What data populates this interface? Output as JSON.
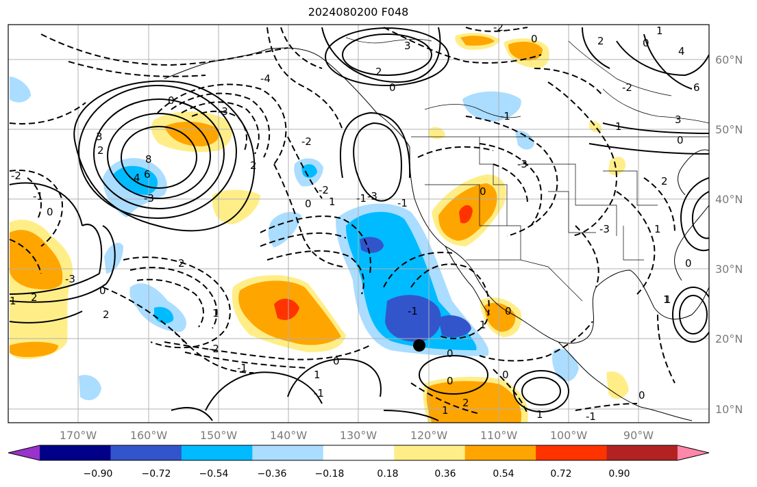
{
  "title": "2024080200 F048",
  "map": {
    "lat_labels": [
      "60°N",
      "50°N",
      "40°N",
      "30°N",
      "20°N",
      "10°N"
    ],
    "lon_labels": [
      "170°W",
      "160°W",
      "150°W",
      "140°W",
      "130°W",
      "120°W",
      "110°W",
      "100°W",
      "90°W"
    ],
    "contour_labels": [
      "2",
      "2",
      "0",
      "3",
      "0",
      "-2",
      "-4",
      "0",
      "-3",
      "3",
      "8",
      "6",
      "4",
      "-3",
      "2",
      "2",
      "-2",
      "-1",
      "0",
      "-2",
      "-2",
      "0",
      "1",
      "-3",
      "-1",
      "2",
      "0",
      "2",
      "1",
      "-3",
      "2",
      "1",
      "0",
      "1",
      "-1",
      "-2",
      "-1",
      "0",
      "1",
      "2",
      "1",
      "-1",
      "0",
      "0",
      "1",
      "-1",
      "-3",
      "-1",
      "0",
      "4",
      "6",
      "0",
      "1",
      "3",
      "1",
      "2",
      "0",
      "0",
      "-2",
      "-3",
      "1",
      "0",
      "1",
      "-1",
      "0",
      "1"
    ],
    "marker": "black-dot"
  },
  "colorbar": {
    "colors": [
      "#9933cc",
      "#000088",
      "#3355cc",
      "#00bbff",
      "#aaddff",
      "#ffffff",
      "#ffee88",
      "#ffa500",
      "#ff3300",
      "#b22222",
      "#ff88aa"
    ],
    "ticks": [
      "−0.90",
      "−0.72",
      "−0.54",
      "−0.36",
      "−0.18",
      "0.18",
      "0.36",
      "0.54",
      "0.72",
      "0.90"
    ]
  }
}
